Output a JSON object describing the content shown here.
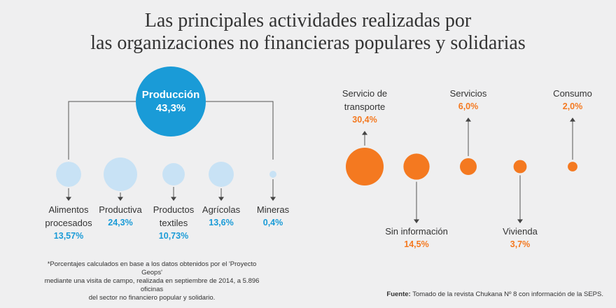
{
  "title": {
    "line1": "Las principales actividades realizadas por",
    "line2": "las organizaciones no financieras populares y solidarias"
  },
  "chart_data": [
    {
      "type": "bubble",
      "main": {
        "label": "Producción",
        "value_label": "43,3%",
        "value": 43.3
      },
      "categories": [
        {
          "label_lines": [
            "Alimentos",
            "procesados"
          ],
          "value": 13.57,
          "value_label": "13,57%"
        },
        {
          "label_lines": [
            "Productiva"
          ],
          "value": 24.3,
          "value_label": "24,3%"
        },
        {
          "label_lines": [
            "Productos",
            "textiles"
          ],
          "value": 10.73,
          "value_label": "10,73%"
        },
        {
          "label_lines": [
            "Agrícolas"
          ],
          "value": 13.6,
          "value_label": "13,6%"
        },
        {
          "label_lines": [
            "Mineras"
          ],
          "value": 0.4,
          "value_label": "0,4%"
        }
      ],
      "color": "#1a9bd7",
      "light_color": "#c8e2f5"
    },
    {
      "type": "bubble",
      "categories": [
        {
          "label_lines": [
            "Servicio de",
            "transporte"
          ],
          "value": 30.4,
          "value_label": "30,4%",
          "label_position": "top"
        },
        {
          "label_lines": [
            "Sin información"
          ],
          "value": 14.5,
          "value_label": "14,5%",
          "label_position": "bottom"
        },
        {
          "label_lines": [
            "Servicios"
          ],
          "value": 6.0,
          "value_label": "6,0%",
          "label_position": "top"
        },
        {
          "label_lines": [
            "Vivienda"
          ],
          "value": 3.7,
          "value_label": "3,7%",
          "label_position": "bottom"
        },
        {
          "label_lines": [
            "Consumo"
          ],
          "value": 2.0,
          "value_label": "2,0%",
          "label_position": "top"
        }
      ],
      "color": "#f47920"
    }
  ],
  "footnote": {
    "line1": "*Porcentajes calculados en base a los datos obtenidos por el 'Proyecto Geops'",
    "line2": "mediante una visita de campo, realizada en septiembre de 2014, a 5.896 oficinas",
    "line3": "del sector no financiero popular y solidario."
  },
  "source": {
    "label": "Fuente:",
    "text": "Tomado de la revista Chukana Nº 8 con información de la SEPS."
  }
}
